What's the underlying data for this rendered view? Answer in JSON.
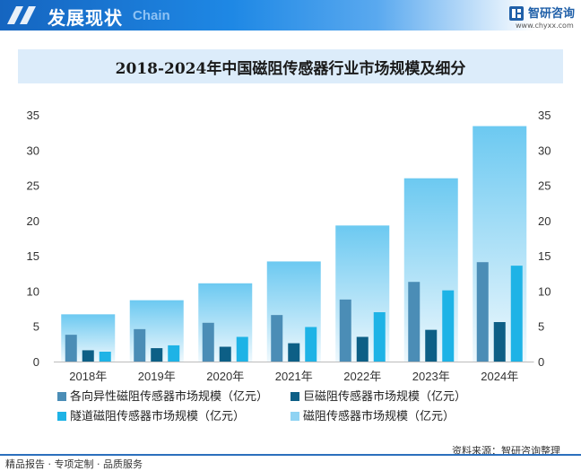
{
  "header": {
    "title": "发展现状",
    "subtitle": "Chain",
    "brand": "智研咨询",
    "url": "www.chyxx.com"
  },
  "chart_data": {
    "type": "bar",
    "title": "2018-2024年中国磁阻传感器行业市场规模及细分",
    "categories": [
      "2018年",
      "2019年",
      "2020年",
      "2021年",
      "2022年",
      "2023年",
      "2024年"
    ],
    "ylim": [
      0,
      35
    ],
    "yticks": [
      0,
      5,
      10,
      15,
      20,
      25,
      30,
      35
    ],
    "legend_position": "bottom",
    "series": [
      {
        "name": "各向异性磁阻传感器市场规模（亿元）",
        "values": [
          3.8,
          4.6,
          5.5,
          6.6,
          8.8,
          11.3,
          14.1
        ],
        "color": "#4b8db6"
      },
      {
        "name": "巨磁阻传感器市场规模（亿元）",
        "values": [
          1.6,
          1.9,
          2.1,
          2.6,
          3.5,
          4.5,
          5.6
        ],
        "color": "#0d5f86"
      },
      {
        "name": "隧道磁阻传感器市场规模（亿元）",
        "values": [
          1.4,
          2.3,
          3.5,
          4.9,
          7.0,
          10.1,
          13.6
        ],
        "color": "#1eb3e6"
      },
      {
        "name": "磁阻传感器市场规模（亿元）",
        "values": [
          6.7,
          8.7,
          11.1,
          14.2,
          19.3,
          26.0,
          33.4
        ],
        "color": "#8fd3f3"
      }
    ]
  },
  "footer": {
    "left": "精品报告 · 专项定制 · 品质服务",
    "source": "资料来源：智研咨询整理"
  }
}
